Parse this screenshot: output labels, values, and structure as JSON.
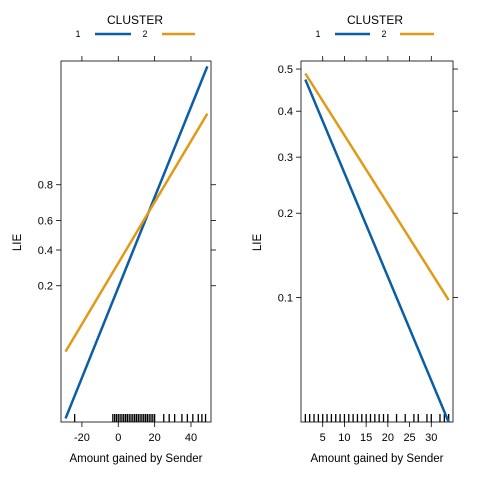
{
  "chart_data": [
    {
      "type": "line",
      "panel": "left",
      "legend": {
        "title": "CLUSTER",
        "entries": [
          "1",
          "2"
        ],
        "placement": "top"
      },
      "xlabel": "Amount gained by Sender",
      "ylabel": "LIE",
      "x_ticks": [
        -20,
        0,
        20,
        40
      ],
      "y_ticks": [
        0.2,
        0.4,
        0.6,
        0.8
      ],
      "y_scale": "logit",
      "xlim": [
        -31.5,
        51
      ],
      "ylim": [
        0.0059,
        0.9917
      ],
      "grid": false,
      "series": [
        {
          "name": "1",
          "color": "#0b5da6",
          "x": [
            -29,
            49
          ],
          "y": [
            0.0065,
            0.9904
          ]
        },
        {
          "name": "2",
          "color": "#e09a17",
          "x": [
            -29,
            49
          ],
          "y": [
            0.0394,
            0.9657
          ]
        }
      ],
      "rug_x": [
        -24,
        -3,
        -2,
        -1,
        0,
        1,
        2,
        3,
        4,
        5,
        6,
        7,
        8,
        9,
        10,
        11,
        12,
        13,
        14,
        15,
        16,
        17,
        18,
        19,
        20,
        25,
        28,
        31,
        35,
        38,
        41,
        44,
        46,
        48
      ]
    },
    {
      "type": "line",
      "panel": "right",
      "legend": {
        "title": "CLUSTER",
        "entries": [
          "1",
          "2"
        ],
        "placement": "top"
      },
      "xlabel": "Amount gained by Sender",
      "ylabel": "LIE",
      "x_ticks": [
        5,
        10,
        15,
        20,
        25,
        30
      ],
      "y_ticks": [
        0.1,
        0.2,
        0.3,
        0.4,
        0.5
      ],
      "y_scale": "logit",
      "xlim": [
        0,
        35
      ],
      "ylim": [
        0.0325,
        0.5193
      ],
      "grid": false,
      "series": [
        {
          "name": "1",
          "color": "#0b5da6",
          "x": [
            1,
            34
          ],
          "y": [
            0.4747,
            0.0325
          ]
        },
        {
          "name": "2",
          "color": "#e09a17",
          "x": [
            1,
            34
          ],
          "y": [
            0.4893,
            0.0979
          ]
        }
      ],
      "rug_x": [
        1,
        2,
        3,
        4,
        5,
        6,
        7,
        8,
        9,
        10,
        11,
        12,
        13,
        14,
        15,
        16,
        17,
        18,
        19,
        20,
        22,
        24,
        26,
        27,
        29,
        30,
        32,
        33,
        34
      ]
    }
  ]
}
